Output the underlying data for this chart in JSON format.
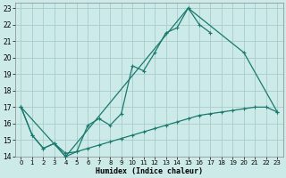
{
  "xlabel": "Humidex (Indice chaleur)",
  "bg_color": "#cceae7",
  "grid_color": "#aacccc",
  "line_color": "#1a7a6e",
  "xlim": [
    -0.5,
    23.5
  ],
  "ylim": [
    14,
    23.3
  ],
  "xticks": [
    0,
    1,
    2,
    3,
    4,
    5,
    6,
    7,
    8,
    9,
    10,
    11,
    12,
    13,
    14,
    15,
    16,
    17,
    18,
    19,
    20,
    21,
    22,
    23
  ],
  "yticks": [
    14,
    15,
    16,
    17,
    18,
    19,
    20,
    21,
    22,
    23
  ],
  "line1_x": [
    0,
    1,
    2,
    3,
    4,
    5,
    6,
    7,
    8,
    9,
    10,
    11,
    12,
    13,
    14,
    15,
    16,
    17,
    18,
    19,
    20,
    21,
    22,
    23
  ],
  "line1_y": [
    17.0,
    15.3,
    14.5,
    14.8,
    14.2,
    14.3,
    14.5,
    14.7,
    14.9,
    15.1,
    15.3,
    15.5,
    15.7,
    15.9,
    16.1,
    16.3,
    16.5,
    16.6,
    16.7,
    16.8,
    16.9,
    17.0,
    17.0,
    16.7
  ],
  "line2_x": [
    0,
    1,
    2,
    3,
    4,
    5,
    6,
    7,
    8,
    9,
    10,
    11,
    12,
    13,
    14,
    15,
    16,
    17
  ],
  "line2_y": [
    17.0,
    15.3,
    14.5,
    14.8,
    14.0,
    14.3,
    15.9,
    16.3,
    15.9,
    16.6,
    19.5,
    19.2,
    20.3,
    21.5,
    21.8,
    23.0,
    22.0,
    21.5
  ],
  "line3_x": [
    0,
    4,
    15,
    20,
    23
  ],
  "line3_y": [
    17.0,
    14.0,
    23.0,
    20.3,
    16.7
  ]
}
